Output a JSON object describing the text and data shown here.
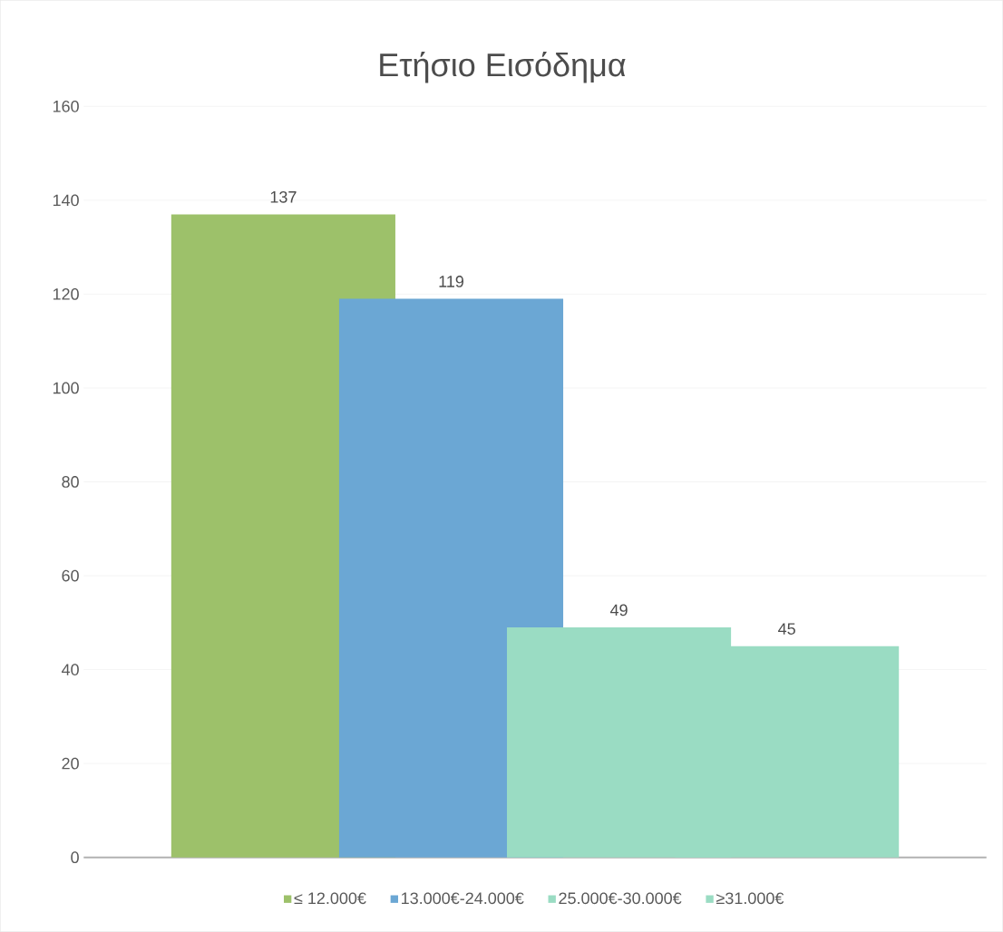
{
  "chart_data": {
    "type": "bar",
    "title": "Ετήσιο Εισόδημα",
    "categories": [
      null
    ],
    "series": [
      {
        "name": "≤ 12.000€",
        "color": "#9dc16a",
        "values": [
          137
        ]
      },
      {
        "name": "13.000€-24.000€",
        "color": "#6ba7d4",
        "values": [
          119
        ]
      },
      {
        "name": "25.000€-30.000€",
        "color": "#9adcc3",
        "values": [
          49
        ]
      },
      {
        "name": "≥31.000€",
        "color": "#9adcc3",
        "values": [
          45
        ]
      }
    ],
    "ylim": [
      0,
      160
    ],
    "yticks": [
      0,
      20,
      40,
      60,
      80,
      100,
      120,
      140,
      160
    ],
    "grid": "y",
    "legend": "bottom",
    "data_labels": true
  }
}
